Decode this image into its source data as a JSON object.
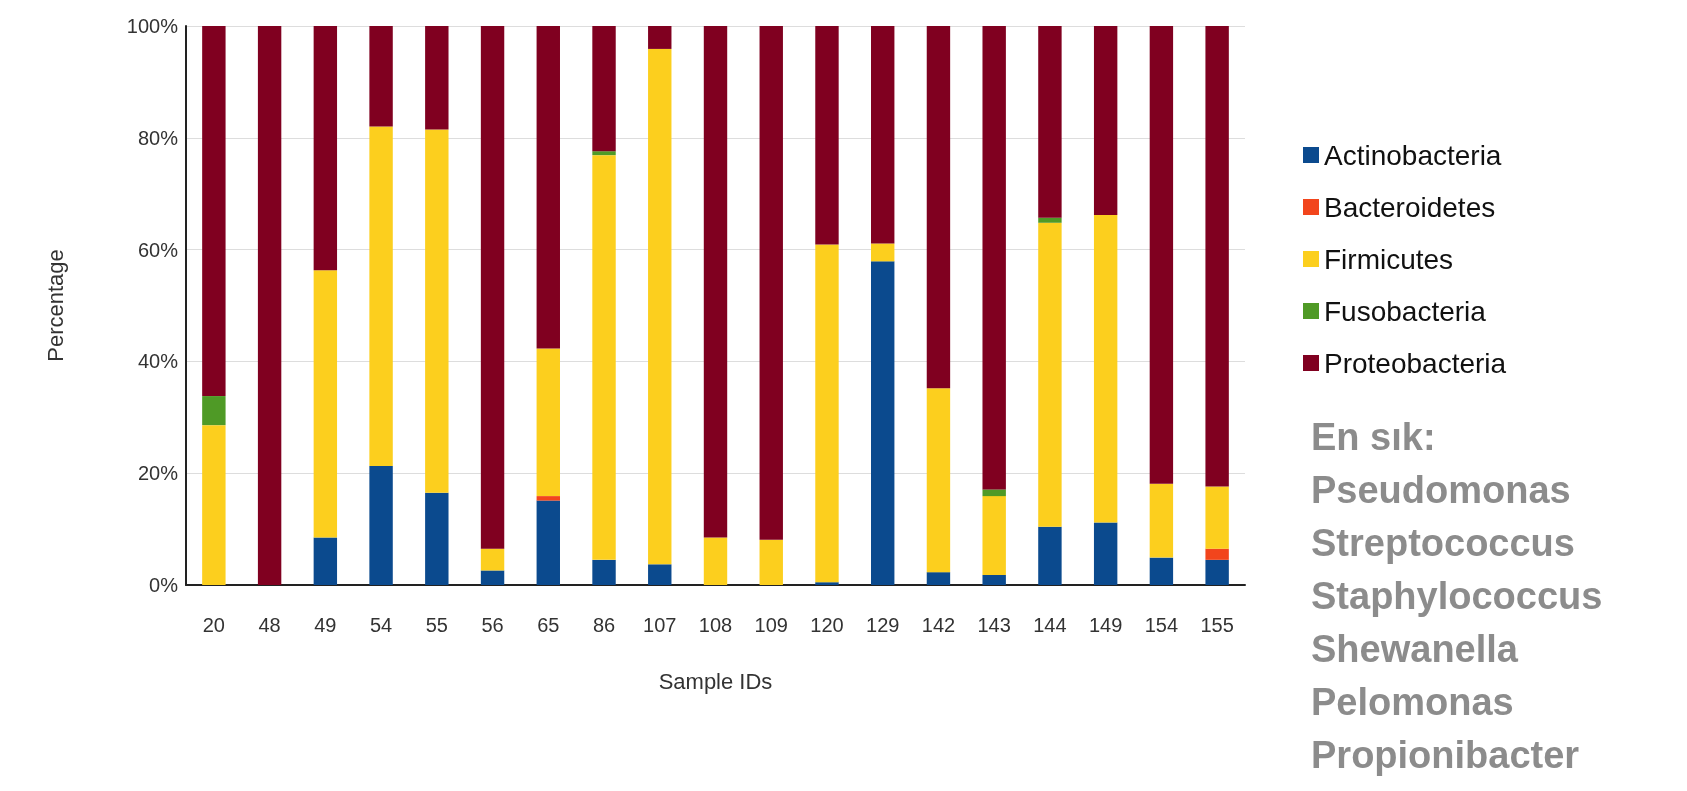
{
  "chart_data": {
    "type": "bar",
    "stacked": true,
    "xlabel": "Sample IDs",
    "ylabel": "Percentage",
    "categories": [
      "20",
      "48",
      "49",
      "54",
      "55",
      "56",
      "65",
      "86",
      "107",
      "108",
      "109",
      "120",
      "129",
      "142",
      "143",
      "144",
      "149",
      "154",
      "155"
    ],
    "series": [
      {
        "name": "Actinobacteria",
        "color": "#0b4a8e",
        "values": [
          0,
          0,
          8.5,
          21.3,
          16.5,
          2.6,
          15.1,
          4.5,
          3.7,
          0,
          0,
          0.5,
          57.9,
          2.3,
          1.8,
          10.4,
          11.2,
          4.9,
          4.5
        ]
      },
      {
        "name": "Bacteroidetes",
        "color": "#f2451c",
        "values": [
          0,
          0,
          0,
          0,
          0,
          0,
          0.8,
          0,
          0,
          0,
          0,
          0,
          0,
          0,
          0,
          0,
          0,
          0,
          2
        ]
      },
      {
        "name": "Firmicutes",
        "color": "#fccf1e",
        "values": [
          28.6,
          0,
          47.8,
          60.7,
          65,
          3.9,
          26.4,
          72.4,
          92.2,
          8.5,
          8.1,
          60.4,
          3.2,
          32.9,
          14.1,
          54.4,
          55,
          13.2,
          11.1
        ]
      },
      {
        "name": "Fusobacteria",
        "color": "#4f9a26",
        "values": [
          5.2,
          0,
          0,
          0,
          0,
          0,
          0,
          0.7,
          0,
          0,
          0,
          0,
          0,
          0,
          1.2,
          0.9,
          0,
          0,
          0
        ]
      },
      {
        "name": "Proteobacteria",
        "color": "#800020",
        "values": [
          66.2,
          100,
          43.7,
          18,
          18.5,
          93.5,
          57.7,
          22.4,
          4.1,
          91.5,
          91.9,
          39.1,
          38.9,
          64.8,
          82.9,
          34.3,
          33.8,
          81.9,
          82.4
        ]
      }
    ],
    "ylim": [
      0,
      100
    ],
    "yticks": [
      {
        "value": 0,
        "label": "0%"
      },
      {
        "value": 20,
        "label": "20%"
      },
      {
        "value": 40,
        "label": "40%"
      },
      {
        "value": 60,
        "label": "60%"
      },
      {
        "value": 80,
        "label": "80%"
      },
      {
        "value": 100,
        "label": "100%"
      }
    ],
    "grid": "y",
    "legend": "right",
    "annotations": [
      "En sık:",
      "Pseudomonas",
      "Streptococcus",
      "Staphylococcus",
      "Shewanella",
      "Pelomonas",
      "Propionibacter"
    ]
  }
}
